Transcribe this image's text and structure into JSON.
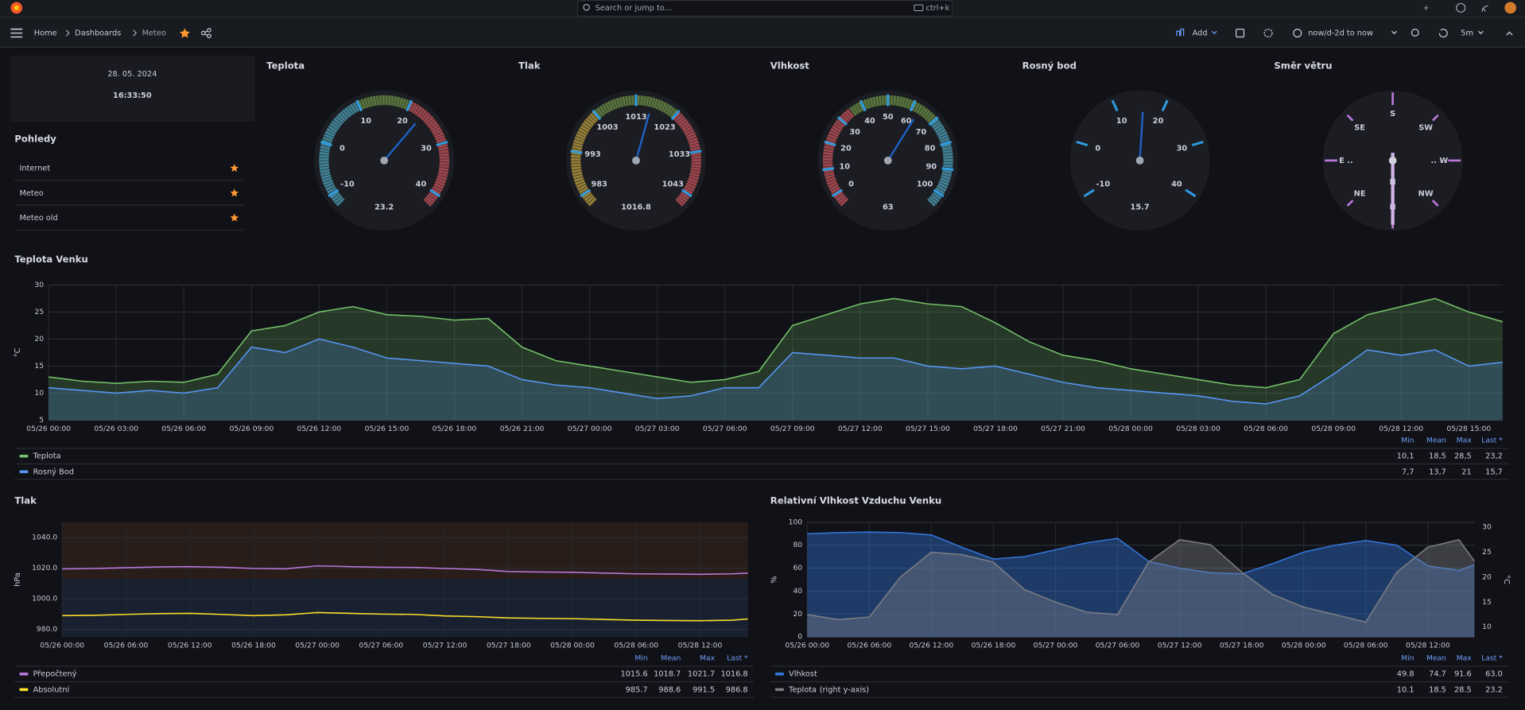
{
  "topbar": {
    "search": "Search or jump to...",
    "shortcut": "ctrl+k"
  },
  "nav": {
    "breadcrumb": [
      "Home",
      "Dashboards",
      "Meteo"
    ],
    "add": "Add",
    "time_range": "now/d-2d to now",
    "refresh": "5m"
  },
  "clock": {
    "date": "28. 05. 2024",
    "time": "16:33:50"
  },
  "links": {
    "title": "Pohledy",
    "items": [
      "Internet",
      "Meteo",
      "Meteo old"
    ]
  },
  "gauges": [
    {
      "type": "gauge",
      "title": "Teplota",
      "value": 23.2,
      "min": -12.5,
      "max": 42.5,
      "ticks": [
        -10,
        0,
        10,
        20,
        30,
        40
      ],
      "bands": [
        {
          "from": -12.5,
          "to": 10,
          "color": "#4b9eb5"
        },
        {
          "from": 10,
          "to": 20,
          "color": "#6a8f45"
        },
        {
          "from": 20,
          "to": 42.5,
          "color": "#c4525a"
        }
      ]
    },
    {
      "type": "gauge",
      "title": "Tlak",
      "value": 1016.8,
      "min": 980,
      "max": 1046,
      "ticks": [
        983,
        993,
        1003,
        1013,
        1023,
        1033,
        1043
      ],
      "bands": [
        {
          "from": 980,
          "to": 1003,
          "color": "#b89c3c"
        },
        {
          "from": 1003,
          "to": 1023,
          "color": "#6a8f45"
        },
        {
          "from": 1023,
          "to": 1046,
          "color": "#c4525a"
        }
      ]
    },
    {
      "type": "gauge",
      "title": "Vlhkost",
      "value": 63,
      "min": -5,
      "max": 105,
      "ticks": [
        0,
        10,
        20,
        30,
        40,
        50,
        60,
        70,
        80,
        90,
        100
      ],
      "bands": [
        {
          "from": -5,
          "to": 35,
          "color": "#c4525a"
        },
        {
          "from": 35,
          "to": 70,
          "color": "#6a8f45"
        },
        {
          "from": 70,
          "to": 105,
          "color": "#4b9eb5"
        }
      ]
    },
    {
      "type": "gauge",
      "title": "Rosný bod",
      "value": 15.7,
      "min": -12.5,
      "max": 42.5,
      "ticks": [
        -10,
        0,
        10,
        20,
        30,
        40
      ],
      "bands": []
    },
    {
      "type": "compass",
      "title": "Směr větru",
      "labels": [
        "S",
        "SW",
        ".. W",
        "NW",
        "N",
        "NE",
        "E ..",
        "SE"
      ],
      "value_label": "N"
    }
  ],
  "charts": [
    {
      "type": "area",
      "title": "Teplota Venku",
      "ylabel": "°C",
      "fill_opacity": 0.22,
      "grid": true,
      "x": [
        "05/26 00:00",
        "05/26 01:30",
        "05/26 03:00",
        "05/26 04:30",
        "05/26 06:00",
        "05/26 07:30",
        "05/26 09:00",
        "05/26 10:30",
        "05/26 12:00",
        "05/26 13:30",
        "05/26 15:00",
        "05/26 16:30",
        "05/26 18:00",
        "05/26 19:30",
        "05/26 21:00",
        "05/26 22:30",
        "05/27 00:00",
        "05/27 01:30",
        "05/27 03:00",
        "05/27 04:30",
        "05/27 06:00",
        "05/27 07:30",
        "05/27 09:00",
        "05/27 10:30",
        "05/27 12:00",
        "05/27 13:30",
        "05/27 15:00",
        "05/27 16:30",
        "05/27 18:00",
        "05/27 19:30",
        "05/27 21:00",
        "05/27 22:30",
        "05/28 00:00",
        "05/28 01:30",
        "05/28 03:00",
        "05/28 04:30",
        "05/28 06:00",
        "05/28 07:30",
        "05/28 09:00",
        "05/28 10:30",
        "05/28 12:00",
        "05/28 13:30",
        "05/28 15:00",
        "05/28 16:30"
      ],
      "xlim": [
        "05/26 00:00",
        "05/28 16:30"
      ],
      "xticks": [
        "05/26 00:00",
        "05/26 03:00",
        "05/26 06:00",
        "05/26 09:00",
        "05/26 12:00",
        "05/26 15:00",
        "05/26 18:00",
        "05/26 21:00",
        "05/27 00:00",
        "05/27 03:00",
        "05/27 06:00",
        "05/27 09:00",
        "05/27 12:00",
        "05/27 15:00",
        "05/27 18:00",
        "05/27 21:00",
        "05/28 00:00",
        "05/28 03:00",
        "05/28 06:00",
        "05/28 09:00",
        "05/28 12:00",
        "05/28 15:00"
      ],
      "ylim": [
        5,
        30
      ],
      "yticks": [
        5,
        10,
        15,
        20,
        25,
        30
      ],
      "series": [
        {
          "name": "Teplota",
          "color": "#73bf69",
          "values": [
            13.0,
            12.2,
            11.8,
            12.2,
            12.0,
            13.5,
            21.5,
            22.5,
            25.0,
            26.0,
            24.5,
            24.2,
            23.5,
            23.8,
            18.5,
            16.0,
            15.0,
            14.0,
            13.0,
            12.0,
            12.5,
            14.0,
            22.5,
            24.5,
            26.5,
            27.5,
            26.5,
            26.0,
            23.0,
            19.5,
            17.0,
            16.0,
            14.5,
            13.5,
            12.5,
            11.5,
            11.0,
            12.5,
            21.0,
            24.5,
            26.0,
            27.5,
            25.0,
            23.2
          ]
        },
        {
          "name": "Rosný Bod",
          "color": "#5794f2",
          "values": [
            11.0,
            10.5,
            10.0,
            10.5,
            10.0,
            11.0,
            18.5,
            17.5,
            20.0,
            18.5,
            16.5,
            16.0,
            15.5,
            15.0,
            12.5,
            11.5,
            11.0,
            10.0,
            9.0,
            9.5,
            11.0,
            11.0,
            17.5,
            17.0,
            16.5,
            16.5,
            15.0,
            14.5,
            15.0,
            13.5,
            12.0,
            11.0,
            10.5,
            10.0,
            9.5,
            8.5,
            8.0,
            9.5,
            13.5,
            18.0,
            17.0,
            18.0,
            15.0,
            15.7
          ]
        }
      ],
      "legend": {
        "columns": [
          "Min",
          "Mean",
          "Max",
          "Last *"
        ],
        "rows": [
          [
            "10,1",
            "18,5",
            "28,5",
            "23,2"
          ],
          [
            "7,7",
            "13,7",
            "21",
            "15,7"
          ]
        ]
      }
    },
    {
      "type": "line",
      "title": "Tlak",
      "ylabel": "hPa",
      "grid": true,
      "x": [
        "05/26 00:00",
        "05/26 03:00",
        "05/26 06:00",
        "05/26 09:00",
        "05/26 12:00",
        "05/26 15:00",
        "05/26 18:00",
        "05/26 21:00",
        "05/27 00:00",
        "05/27 03:00",
        "05/27 06:00",
        "05/27 09:00",
        "05/27 12:00",
        "05/27 15:00",
        "05/27 18:00",
        "05/27 21:00",
        "05/28 00:00",
        "05/28 03:00",
        "05/28 06:00",
        "05/28 09:00",
        "05/28 12:00",
        "05/28 15:00",
        "05/28 16:30"
      ],
      "xlim": [
        "05/26 00:00",
        "05/28 16:30"
      ],
      "xticks": [
        "05/26 00:00",
        "05/26 06:00",
        "05/26 12:00",
        "05/26 18:00",
        "05/27 00:00",
        "05/27 06:00",
        "05/27 12:00",
        "05/27 18:00",
        "05/28 00:00",
        "05/28 06:00",
        "05/28 12:00"
      ],
      "ylim": [
        975,
        1050
      ],
      "yticks": [
        {
          "value": 980,
          "label": "980.0"
        },
        {
          "value": 1000,
          "label": "1000.0"
        },
        {
          "value": 1020,
          "label": "1020.0"
        },
        {
          "value": 1040,
          "label": "1040.0"
        }
      ],
      "bands": [
        {
          "from": 975,
          "to": 1013,
          "color": "#5794f2"
        },
        {
          "from": 1013,
          "to": 1050,
          "color": "#e0752d"
        }
      ],
      "series": [
        {
          "name": "Přepočtený",
          "color": "#b877d9",
          "values": [
            1019.5,
            1019.8,
            1020.3,
            1020.8,
            1021.0,
            1020.6,
            1019.8,
            1019.6,
            1021.5,
            1021.0,
            1020.6,
            1020.5,
            1019.8,
            1019.2,
            1017.8,
            1017.5,
            1017.3,
            1016.8,
            1016.3,
            1016.2,
            1016.0,
            1016.3,
            1016.8
          ]
        },
        {
          "name": "Absolutní",
          "color": "#fade2a",
          "values": [
            989.0,
            989.2,
            989.8,
            990.3,
            990.5,
            989.8,
            989.0,
            989.5,
            991.0,
            990.5,
            990.0,
            989.8,
            988.8,
            988.3,
            987.5,
            987.2,
            987.0,
            986.5,
            986.0,
            985.8,
            985.7,
            986.0,
            986.8
          ]
        }
      ],
      "legend": {
        "columns": [
          "Min",
          "Mean",
          "Max",
          "Last *"
        ],
        "rows": [
          [
            "1015.6",
            "1018.7",
            "1021.7",
            "1016.8"
          ],
          [
            "985.7",
            "988.6",
            "991.5",
            "986.8"
          ]
        ]
      }
    },
    {
      "type": "area",
      "title": "Relativní Vlhkost Vzduchu Venku",
      "ylabel": "%",
      "y2label": "°C",
      "fill_opacity": 0.42,
      "grid": true,
      "x": [
        "05/26 00:00",
        "05/26 03:00",
        "05/26 06:00",
        "05/26 09:00",
        "05/26 12:00",
        "05/26 15:00",
        "05/26 18:00",
        "05/26 21:00",
        "05/27 00:00",
        "05/27 03:00",
        "05/27 06:00",
        "05/27 09:00",
        "05/27 12:00",
        "05/27 15:00",
        "05/27 18:00",
        "05/27 21:00",
        "05/28 00:00",
        "05/28 03:00",
        "05/28 06:00",
        "05/28 09:00",
        "05/28 12:00",
        "05/28 15:00",
        "05/28 16:30"
      ],
      "xlim": [
        "05/26 00:00",
        "05/28 16:30"
      ],
      "xticks": [
        "05/26 00:00",
        "05/26 06:00",
        "05/26 12:00",
        "05/26 18:00",
        "05/27 00:00",
        "05/27 06:00",
        "05/27 12:00",
        "05/27 18:00",
        "05/28 00:00",
        "05/28 06:00",
        "05/28 12:00"
      ],
      "ylim": [
        0,
        100
      ],
      "yticks": [
        0,
        20,
        40,
        60,
        80,
        100
      ],
      "y2lim": [
        8,
        31
      ],
      "y2ticks": [
        10,
        15,
        20,
        25,
        30
      ],
      "series": [
        {
          "name": "Vlhkost",
          "color": "#3274d9",
          "values": [
            90,
            91,
            91.5,
            91,
            89,
            78,
            68,
            70,
            76,
            82,
            86,
            66,
            60,
            56,
            55,
            64,
            74,
            80,
            84,
            80,
            62,
            58,
            63
          ]
        },
        {
          "name": "Teplota",
          "note": "(right y-axis)",
          "axis": "y2",
          "color": "#7a7c82",
          "values": [
            12.5,
            11.5,
            12,
            20,
            25,
            24.5,
            23,
            17.5,
            15,
            13,
            12.5,
            23,
            27.5,
            26.5,
            21,
            16.5,
            14,
            12.5,
            11,
            21,
            26,
            27.5,
            23.2
          ]
        }
      ],
      "legend": {
        "columns": [
          "Min",
          "Mean",
          "Max",
          "Last *"
        ],
        "rows": [
          [
            "49.8",
            "74.7",
            "91.6",
            "63.0"
          ],
          [
            "10.1",
            "18.5",
            "28.5",
            "23.2"
          ]
        ]
      }
    }
  ]
}
